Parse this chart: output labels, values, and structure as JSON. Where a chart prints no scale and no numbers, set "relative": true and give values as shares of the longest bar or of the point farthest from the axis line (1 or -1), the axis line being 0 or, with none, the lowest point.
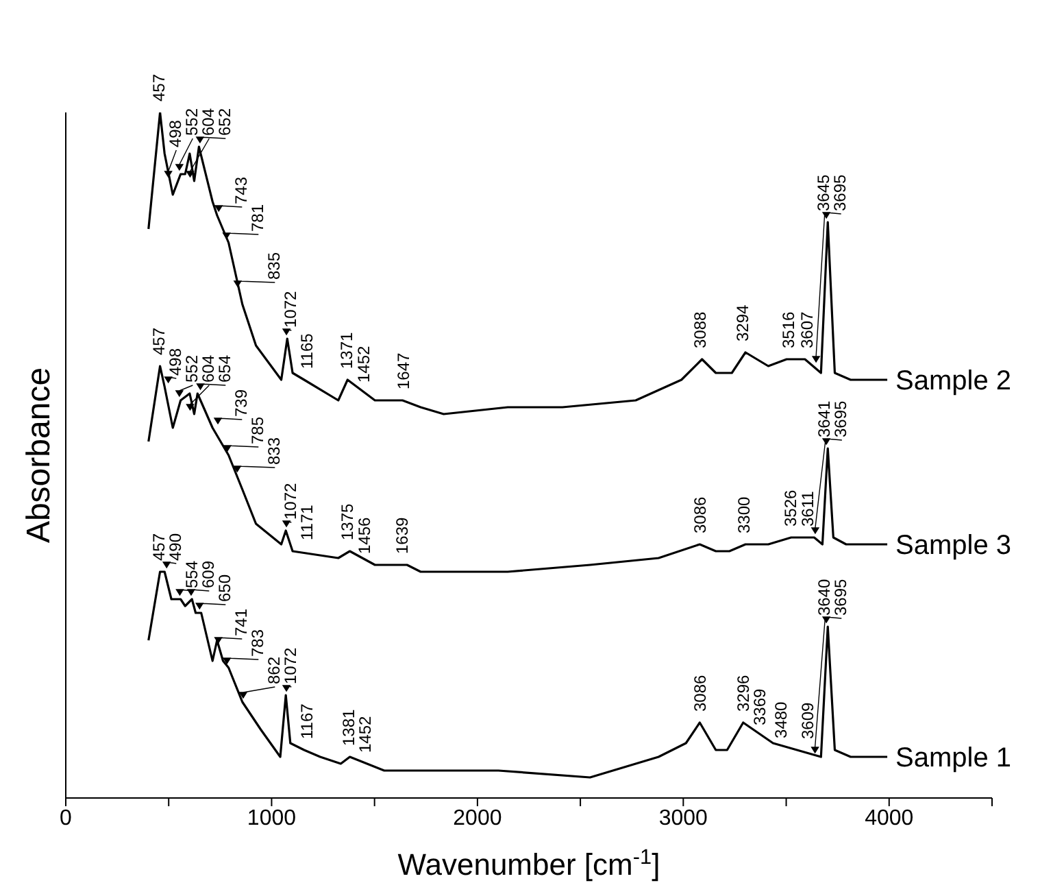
{
  "chart_data": {
    "type": "line",
    "relative": true,
    "xlabel": "Wavenumber [cm$^{-1}$]",
    "ylabel": "Absorbance",
    "xlim": [
      0,
      4500
    ],
    "xticks": [
      0,
      {
        "value": 500,
        "label": null
      },
      1000,
      {
        "value": 1500,
        "label": null
      },
      2000,
      {
        "value": 2500,
        "label": null
      },
      3000,
      {
        "value": 3500,
        "label": null
      },
      4000,
      {
        "value": 4500,
        "label": null
      }
    ],
    "grid": false,
    "legend": false,
    "marker": "none",
    "line_style": "solid",
    "series": [
      {
        "name": "Sample 2",
        "color": "#000000",
        "x": [
          402,
          458,
          480,
          520,
          558,
          580,
          602,
          624,
          647,
          713,
          735,
          791,
          858,
          924,
          1047,
          1076,
          1102,
          1158,
          1324,
          1369,
          1502,
          1636,
          1724,
          1836,
          2147,
          2413,
          2769,
          2991,
          3091,
          3158,
          3236,
          3302,
          3413,
          3502,
          3591,
          3669,
          3702,
          3736,
          3813,
          3991
        ],
        "values": [
          0.83,
          1.0,
          0.94,
          0.88,
          0.91,
          0.91,
          0.94,
          0.9,
          0.95,
          0.87,
          0.85,
          0.81,
          0.72,
          0.66,
          0.61,
          0.67,
          0.62,
          0.61,
          0.58,
          0.61,
          0.58,
          0.58,
          0.57,
          0.56,
          0.57,
          0.57,
          0.58,
          0.61,
          0.64,
          0.62,
          0.62,
          0.65,
          0.63,
          0.64,
          0.64,
          0.62,
          0.84,
          0.62,
          0.61,
          0.61
        ]
      },
      {
        "name": "Sample 3",
        "color": "#000000",
        "x": [
          402,
          458,
          480,
          520,
          558,
          602,
          624,
          640,
          713,
          791,
          858,
          924,
          1047,
          1069,
          1102,
          1324,
          1380,
          1502,
          1658,
          1724,
          2147,
          2547,
          2880,
          3080,
          3158,
          3224,
          3302,
          3413,
          3524,
          3636,
          3676,
          3702,
          3729,
          3791,
          3991
        ],
        "values": [
          0.52,
          0.63,
          0.6,
          0.54,
          0.58,
          0.59,
          0.56,
          0.59,
          0.54,
          0.5,
          0.45,
          0.4,
          0.37,
          0.39,
          0.36,
          0.35,
          0.36,
          0.34,
          0.34,
          0.33,
          0.33,
          0.34,
          0.35,
          0.37,
          0.36,
          0.36,
          0.37,
          0.37,
          0.38,
          0.38,
          0.37,
          0.51,
          0.38,
          0.37,
          0.37
        ]
      },
      {
        "name": "Sample 1",
        "color": "#000000",
        "x": [
          402,
          458,
          480,
          513,
          558,
          580,
          613,
          631,
          658,
          713,
          735,
          764,
          791,
          858,
          947,
          1042,
          1069,
          1091,
          1158,
          1236,
          1336,
          1380,
          1547,
          1724,
          2102,
          2547,
          2880,
          3013,
          3080,
          3158,
          3213,
          3291,
          3436,
          3669,
          3702,
          3736,
          3813,
          3991
        ],
        "values": [
          0.23,
          0.33,
          0.33,
          0.29,
          0.29,
          0.28,
          0.29,
          0.27,
          0.27,
          0.2,
          0.23,
          0.2,
          0.19,
          0.14,
          0.1,
          0.06,
          0.15,
          0.08,
          0.07,
          0.06,
          0.05,
          0.06,
          0.04,
          0.04,
          0.04,
          0.03,
          0.06,
          0.08,
          0.11,
          0.07,
          0.07,
          0.11,
          0.08,
          0.06,
          0.25,
          0.07,
          0.06,
          0.06
        ]
      }
    ],
    "annotations": [
      {
        "text": "457",
        "x": 457,
        "y": 1.0
      },
      {
        "text": "498",
        "x": 498,
        "y": 0.9
      },
      {
        "text": "552",
        "x": 552,
        "y": 0.91
      },
      {
        "text": "604",
        "x": 604,
        "y": 0.9
      },
      {
        "text": "652",
        "x": 652,
        "y": 0.95
      },
      {
        "text": "743",
        "x": 743,
        "y": 0.85
      },
      {
        "text": "781",
        "x": 781,
        "y": 0.81
      },
      {
        "text": "835",
        "x": 835,
        "y": 0.74
      },
      {
        "text": "1072",
        "x": 1072,
        "y": 0.67
      },
      {
        "text": "1165",
        "x": 1165,
        "y": 0.61
      },
      {
        "text": "1371",
        "x": 1371,
        "y": 0.61
      },
      {
        "text": "1452",
        "x": 1452,
        "y": 0.59
      },
      {
        "text": "1647",
        "x": 1647,
        "y": 0.58
      },
      {
        "text": "3088",
        "x": 3088,
        "y": 0.64
      },
      {
        "text": "3294",
        "x": 3294,
        "y": 0.65
      },
      {
        "text": "3516",
        "x": 3516,
        "y": 0.64
      },
      {
        "text": "3607",
        "x": 3607,
        "y": 0.64
      },
      {
        "text": "3645",
        "x": 3645,
        "y": 0.63
      },
      {
        "text": "3695",
        "x": 3695,
        "y": 0.84
      },
      {
        "text": "457",
        "x": 457,
        "y": 0.63
      },
      {
        "text": "498",
        "x": 498,
        "y": 0.6
      },
      {
        "text": "552",
        "x": 552,
        "y": 0.58
      },
      {
        "text": "604",
        "x": 604,
        "y": 0.56
      },
      {
        "text": "654",
        "x": 654,
        "y": 0.59
      },
      {
        "text": "739",
        "x": 739,
        "y": 0.54
      },
      {
        "text": "785",
        "x": 785,
        "y": 0.5
      },
      {
        "text": "833",
        "x": 833,
        "y": 0.47
      },
      {
        "text": "1072",
        "x": 1072,
        "y": 0.39
      },
      {
        "text": "1171",
        "x": 1171,
        "y": 0.36
      },
      {
        "text": "1375",
        "x": 1375,
        "y": 0.36
      },
      {
        "text": "1456",
        "x": 1456,
        "y": 0.34
      },
      {
        "text": "1639",
        "x": 1639,
        "y": 0.34
      },
      {
        "text": "3086",
        "x": 3086,
        "y": 0.37
      },
      {
        "text": "3300",
        "x": 3300,
        "y": 0.37
      },
      {
        "text": "3526",
        "x": 3526,
        "y": 0.38
      },
      {
        "text": "3611",
        "x": 3611,
        "y": 0.38
      },
      {
        "text": "3641",
        "x": 3641,
        "y": 0.38
      },
      {
        "text": "3695",
        "x": 3695,
        "y": 0.51
      },
      {
        "text": "457",
        "x": 457,
        "y": 0.33
      },
      {
        "text": "490",
        "x": 490,
        "y": 0.33
      },
      {
        "text": "554",
        "x": 554,
        "y": 0.29
      },
      {
        "text": "609",
        "x": 609,
        "y": 0.29
      },
      {
        "text": "650",
        "x": 650,
        "y": 0.27
      },
      {
        "text": "741",
        "x": 741,
        "y": 0.22
      },
      {
        "text": "783",
        "x": 783,
        "y": 0.19
      },
      {
        "text": "862",
        "x": 862,
        "y": 0.14
      },
      {
        "text": "1072",
        "x": 1072,
        "y": 0.15
      },
      {
        "text": "1167",
        "x": 1167,
        "y": 0.07
      },
      {
        "text": "1381",
        "x": 1381,
        "y": 0.06
      },
      {
        "text": "1452",
        "x": 1452,
        "y": 0.05
      },
      {
        "text": "3086",
        "x": 3086,
        "y": 0.11
      },
      {
        "text": "3296",
        "x": 3296,
        "y": 0.11
      },
      {
        "text": "3369",
        "x": 3369,
        "y": 0.09
      },
      {
        "text": "3480",
        "x": 3480,
        "y": 0.07
      },
      {
        "text": "3609",
        "x": 3609,
        "y": 0.07
      },
      {
        "text": "3640",
        "x": 3640,
        "y": 0.06
      },
      {
        "text": "3695",
        "x": 3695,
        "y": 0.25
      }
    ]
  }
}
